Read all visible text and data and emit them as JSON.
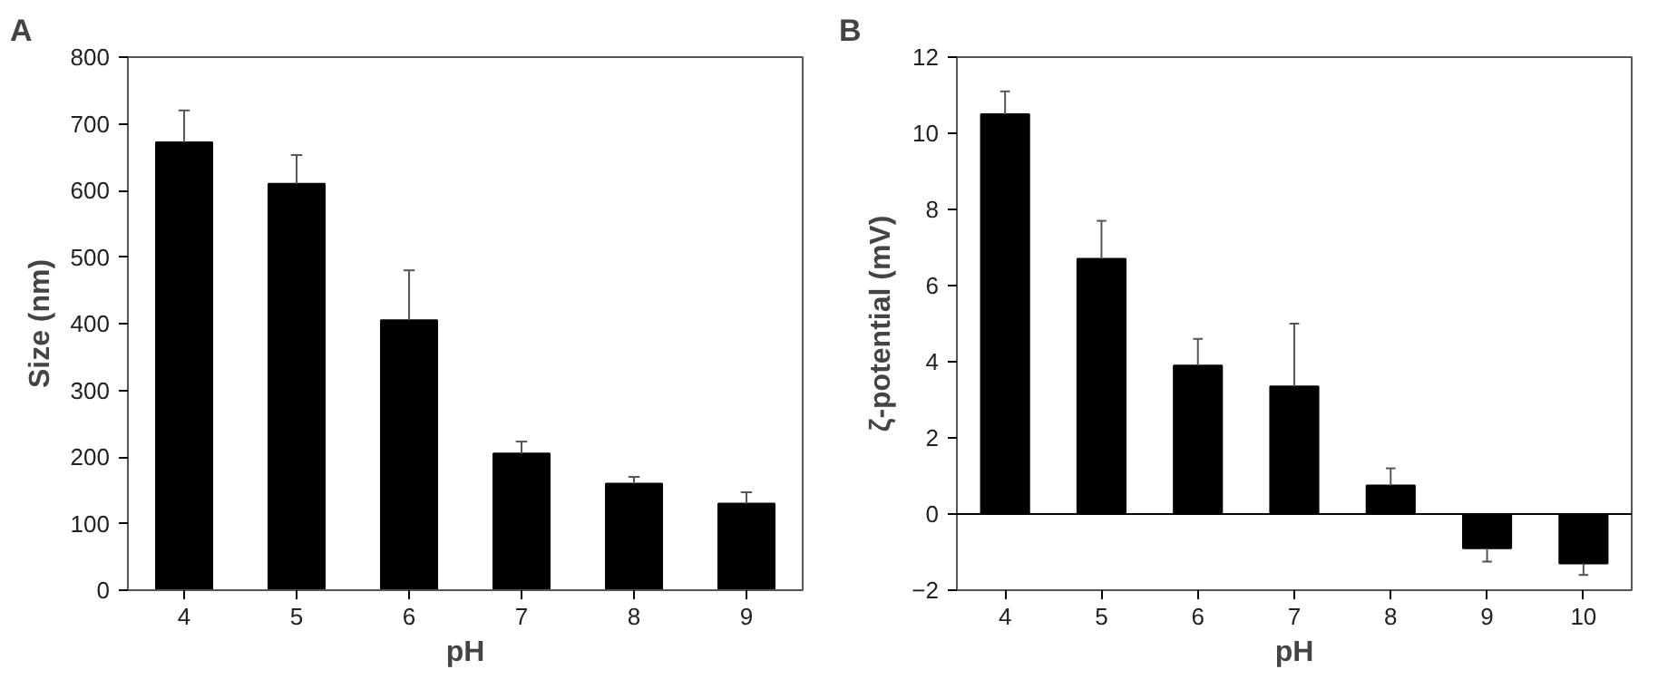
{
  "chart_data": [
    {
      "type": "bar",
      "title": "A",
      "xlabel": "pH",
      "ylabel": "Size (nm)",
      "categories": [
        "4",
        "5",
        "6",
        "7",
        "8",
        "9"
      ],
      "values": [
        672,
        610,
        405,
        205,
        160,
        130
      ],
      "color": "#000000",
      "errors": [
        [
          672,
          720
        ],
        [
          610,
          653
        ],
        [
          405,
          480
        ],
        [
          205,
          223
        ],
        [
          160,
          170
        ],
        [
          130,
          147
        ]
      ],
      "ylim": [
        0,
        800
      ],
      "yticks": [
        0,
        100,
        200,
        300,
        400,
        500,
        600,
        700,
        800
      ],
      "grid": false
    },
    {
      "type": "bar",
      "title": "B",
      "xlabel": "pH",
      "ylabel": "ζ-potential (mV)",
      "categories": [
        "4",
        "5",
        "6",
        "7",
        "8",
        "9",
        "10"
      ],
      "values": [
        10.5,
        6.7,
        3.9,
        3.35,
        0.75,
        -0.9,
        -1.3
      ],
      "color": "#000000",
      "errors": [
        [
          10.5,
          11.1
        ],
        [
          6.7,
          7.7
        ],
        [
          3.9,
          4.6
        ],
        [
          3.35,
          5.0
        ],
        [
          0.75,
          1.2
        ],
        [
          -1.25,
          -0.9
        ],
        [
          -1.6,
          -1.3
        ]
      ],
      "ylim": [
        -2,
        12
      ],
      "yticks": [
        {
          "value": -2,
          "label": "−2"
        },
        0,
        2,
        4,
        6,
        8,
        10,
        12
      ],
      "grid": false,
      "ref_lines": [
        {
          "axis": "y",
          "value": 0,
          "color": "#000000"
        }
      ]
    }
  ]
}
